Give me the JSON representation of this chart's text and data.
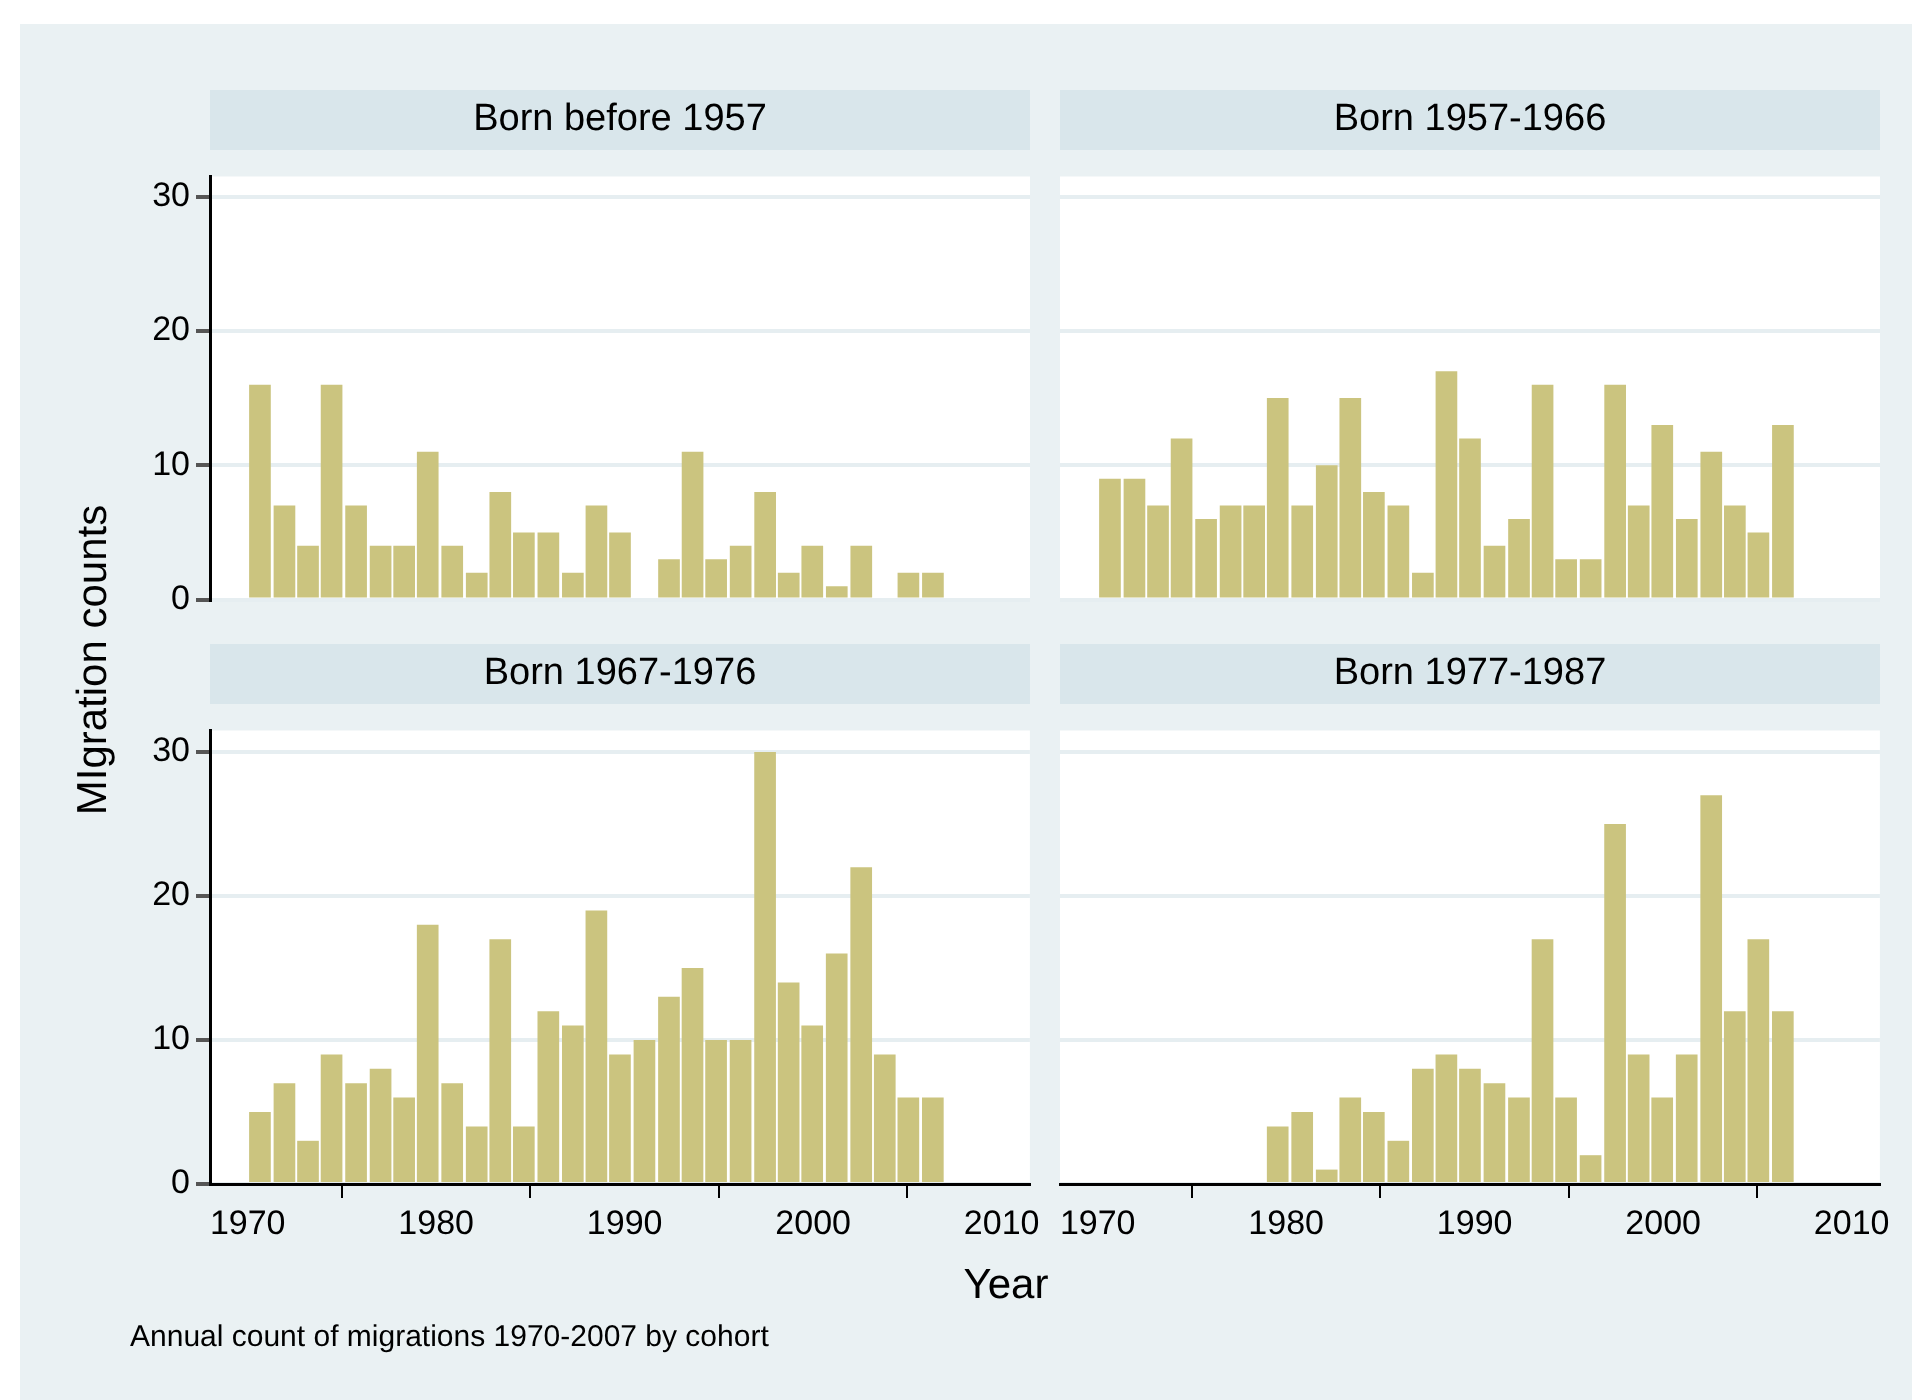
{
  "chart_data": [
    {
      "type": "histogram",
      "title": "Born before 1957",
      "ylabel": "MIgration counts",
      "color": "#cbc47f",
      "bins": [
        1970,
        1971.3,
        1972.6,
        1973.8,
        1975.1,
        1976.4,
        1977.7,
        1978.9,
        1980.2,
        1981.5,
        1982.8,
        1984.0,
        1985.3,
        1986.6,
        1987.9,
        1989.1,
        1990.4,
        1991.7,
        1993.0,
        1994.2,
        1995.5,
        1996.8,
        1998.1,
        1999.3,
        2000.6,
        2001.9,
        2003.2,
        2004.4,
        2005.7,
        2007
      ],
      "values": [
        16,
        7,
        4,
        16,
        7,
        4,
        4,
        11,
        4,
        2,
        8,
        5,
        5,
        2,
        7,
        5,
        0,
        3,
        11,
        3,
        4,
        8,
        2,
        4,
        1,
        4,
        0,
        2,
        2
      ],
      "xlim": [
        1968,
        2011.5
      ],
      "ylim": [
        0,
        31.5
      ],
      "xticks": [
        1970,
        1980,
        1990,
        2000,
        2010
      ],
      "yticks": [
        0,
        10,
        20,
        30
      ],
      "grid": "y",
      "tick_labels": "y"
    },
    {
      "type": "histogram",
      "title": "Born 1957-1966",
      "color": "#cbc47f",
      "bins": [
        1970,
        1971.3,
        1972.6,
        1973.8,
        1975.1,
        1976.4,
        1977.7,
        1978.9,
        1980.2,
        1981.5,
        1982.8,
        1984.0,
        1985.3,
        1986.6,
        1987.9,
        1989.1,
        1990.4,
        1991.7,
        1993.0,
        1994.2,
        1995.5,
        1996.8,
        1998.1,
        1999.3,
        2000.6,
        2001.9,
        2003.2,
        2004.4,
        2005.7,
        2007
      ],
      "values": [
        9,
        9,
        7,
        12,
        6,
        7,
        7,
        15,
        7,
        10,
        15,
        8,
        7,
        2,
        17,
        12,
        4,
        6,
        16,
        3,
        3,
        16,
        7,
        13,
        6,
        11,
        7,
        5,
        13
      ],
      "xlim": [
        1968,
        2011.5
      ],
      "ylim": [
        0,
        31.5
      ],
      "xticks": [
        1970,
        1980,
        1990,
        2000,
        2010
      ],
      "yticks": [
        0,
        10,
        20,
        30
      ],
      "grid": "y",
      "tick_labels": false
    },
    {
      "type": "histogram",
      "title": "Born 1967-1976",
      "color": "#cbc47f",
      "bins": [
        1970,
        1971.3,
        1972.6,
        1973.8,
        1975.1,
        1976.4,
        1977.7,
        1978.9,
        1980.2,
        1981.5,
        1982.8,
        1984.0,
        1985.3,
        1986.6,
        1987.9,
        1989.1,
        1990.4,
        1991.7,
        1993.0,
        1994.2,
        1995.5,
        1996.8,
        1998.1,
        1999.3,
        2000.6,
        2001.9,
        2003.2,
        2004.4,
        2005.7,
        2007
      ],
      "values": [
        5,
        7,
        3,
        9,
        7,
        8,
        6,
        18,
        7,
        4,
        17,
        4,
        12,
        11,
        19,
        9,
        10,
        13,
        15,
        10,
        10,
        30,
        14,
        11,
        16,
        22,
        9,
        6,
        6
      ],
      "xlim": [
        1968,
        2011.5
      ],
      "ylim": [
        0,
        31.5
      ],
      "xticks": [
        1970,
        1980,
        1990,
        2000,
        2010
      ],
      "yticks": [
        0,
        10,
        20,
        30
      ],
      "grid": "y"
    },
    {
      "type": "histogram",
      "title": "Born 1977-1987",
      "xlabel": "Year",
      "annotations": [
        "Annual count of migrations 1970-2007 by cohort"
      ],
      "color": "#cbc47f",
      "bins": [
        1978.9,
        1980.2,
        1981.5,
        1982.8,
        1984.0,
        1985.3,
        1986.6,
        1987.9,
        1989.1,
        1990.4,
        1991.7,
        1993.0,
        1994.2,
        1995.5,
        1996.8,
        1998.1,
        1999.3,
        2000.6,
        2001.9,
        2003.2,
        2004.4,
        2005.7,
        2007
      ],
      "values": [
        4,
        5,
        1,
        6,
        5,
        3,
        8,
        9,
        8,
        7,
        6,
        17,
        6,
        2,
        25,
        9,
        6,
        9,
        27,
        12,
        17,
        12
      ],
      "xlim": [
        1968,
        2011.5
      ],
      "ylim": [
        0,
        31.5
      ],
      "xticks": [
        1970,
        1980,
        1990,
        2000,
        2010
      ],
      "yticks": [
        0,
        10,
        20,
        30
      ],
      "grid": "y",
      "tick_labels": "x"
    }
  ]
}
